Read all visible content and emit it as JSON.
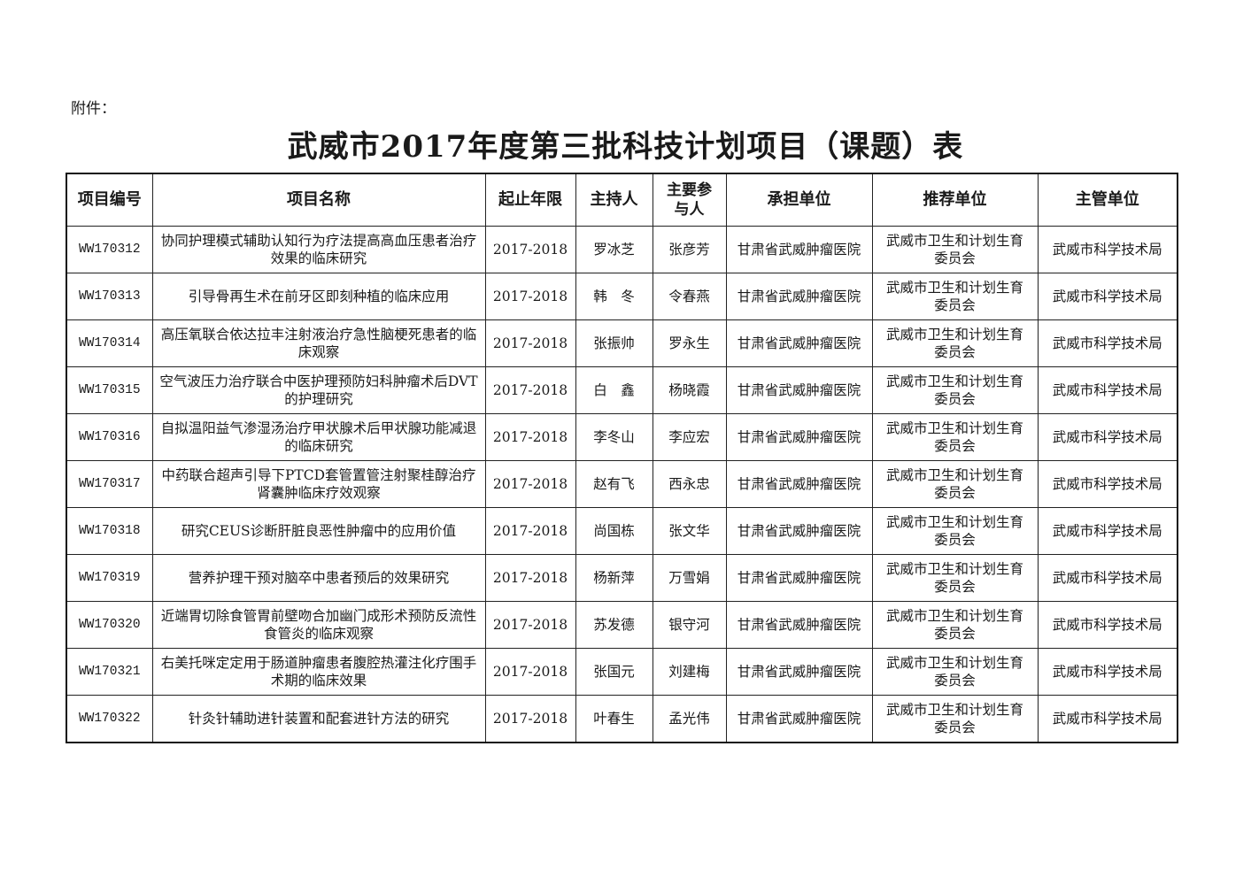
{
  "attachment_label": "附件：",
  "title": "武威市2017年度第三批科技计划项目（课题）表",
  "table": {
    "headers": [
      "项目编号",
      "项目名称",
      "起止年限",
      "主持人",
      "主要参与人",
      "承担单位",
      "推荐单位",
      "主管单位"
    ],
    "rows": [
      [
        "WW170312",
        "协同护理模式辅助认知行为疗法提高高血压患者治疗效果的临床研究",
        "2017-2018",
        "罗冰芝",
        "张彦芳",
        "甘肃省武威肿瘤医院",
        "武威市卫生和计划生育委员会",
        "武威市科学技术局"
      ],
      [
        "WW170313",
        "引导骨再生术在前牙区即刻种植的临床应用",
        "2017-2018",
        "韩　冬",
        "令春燕",
        "甘肃省武威肿瘤医院",
        "武威市卫生和计划生育委员会",
        "武威市科学技术局"
      ],
      [
        "WW170314",
        "高压氧联合依达拉丰注射液治疗急性脑梗死患者的临床观察",
        "2017-2018",
        "张振帅",
        "罗永生",
        "甘肃省武威肿瘤医院",
        "武威市卫生和计划生育委员会",
        "武威市科学技术局"
      ],
      [
        "WW170315",
        "空气波压力治疗联合中医护理预防妇科肿瘤术后DVT的护理研究",
        "2017-2018",
        "白　鑫",
        "杨晓霞",
        "甘肃省武威肿瘤医院",
        "武威市卫生和计划生育委员会",
        "武威市科学技术局"
      ],
      [
        "WW170316",
        "自拟温阳益气渗湿汤治疗甲状腺术后甲状腺功能减退的临床研究",
        "2017-2018",
        "李冬山",
        "李应宏",
        "甘肃省武威肿瘤医院",
        "武威市卫生和计划生育委员会",
        "武威市科学技术局"
      ],
      [
        "WW170317",
        "中药联合超声引导下PTCD套管置管注射聚桂醇治疗肾囊肿临床疗效观察",
        "2017-2018",
        "赵有飞",
        "西永忠",
        "甘肃省武威肿瘤医院",
        "武威市卫生和计划生育委员会",
        "武威市科学技术局"
      ],
      [
        "WW170318",
        "研究CEUS诊断肝脏良恶性肿瘤中的应用价值",
        "2017-2018",
        "尚国栋",
        "张文华",
        "甘肃省武威肿瘤医院",
        "武威市卫生和计划生育委员会",
        "武威市科学技术局"
      ],
      [
        "WW170319",
        "营养护理干预对脑卒中患者预后的效果研究",
        "2017-2018",
        "杨新萍",
        "万雪娟",
        "甘肃省武威肿瘤医院",
        "武威市卫生和计划生育委员会",
        "武威市科学技术局"
      ],
      [
        "WW170320",
        "近端胃切除食管胃前壁吻合加幽门成形术预防反流性食管炎的临床观察",
        "2017-2018",
        "苏发德",
        "银守河",
        "甘肃省武威肿瘤医院",
        "武威市卫生和计划生育委员会",
        "武威市科学技术局"
      ],
      [
        "WW170321",
        "右美托咪定定用于肠道肿瘤患者腹腔热灌注化疗围手术期的临床效果",
        "2017-2018",
        "张国元",
        "刘建梅",
        "甘肃省武威肿瘤医院",
        "武威市卫生和计划生育委员会",
        "武威市科学技术局"
      ],
      [
        "WW170322",
        "针灸针辅助进针装置和配套进针方法的研究",
        "2017-2018",
        "叶春生",
        "孟光伟",
        "甘肃省武威肿瘤医院",
        "武威市卫生和计划生育委员会",
        "武威市科学技术局"
      ]
    ]
  }
}
